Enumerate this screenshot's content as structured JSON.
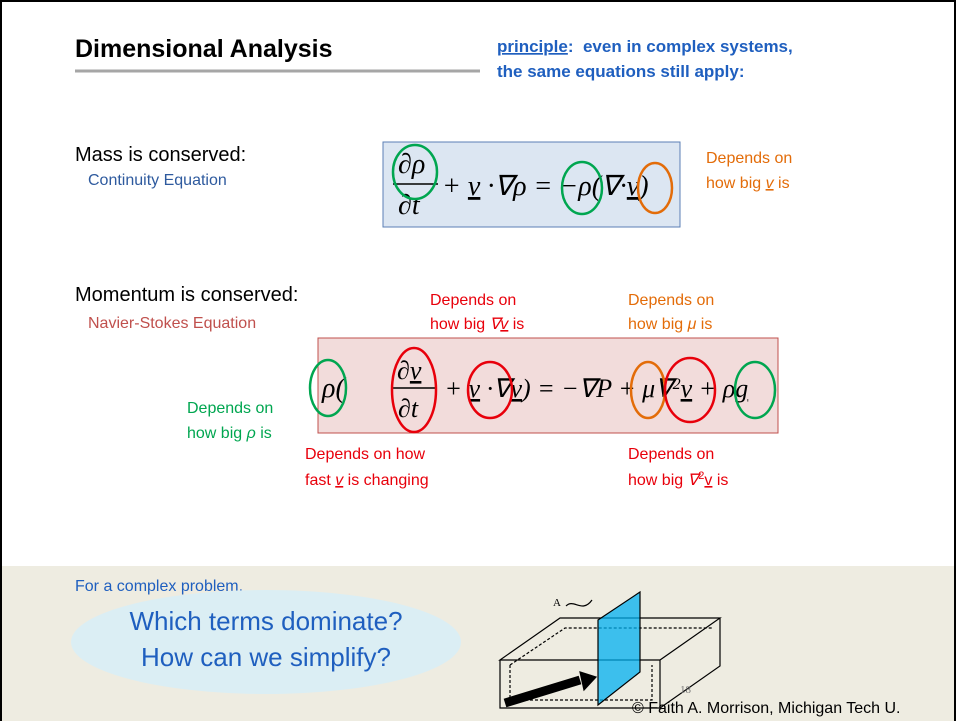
{
  "title": "Dimensional Analysis",
  "principle": {
    "keyword": "principle",
    "line1": ":  even in complex systems,",
    "line2": "the same equations still apply:"
  },
  "mass": {
    "heading": "Mass is conserved:",
    "equation_name": "Continuity Equation",
    "equation": {
      "numerator": "∂ρ",
      "denominator": "∂t",
      "terms": [
        "+ ",
        "v",
        " ·∇ρ = −ρ(∇·",
        "v",
        ")"
      ]
    },
    "note": {
      "line1": "Depends on",
      "line2": [
        "how big ",
        "v",
        " is"
      ]
    }
  },
  "momentum": {
    "heading": "Momentum is conserved:",
    "equation_name": "Navier-Stokes Equation",
    "equation": {
      "lhs_open": "ρ(",
      "numerator": [
        "∂",
        "v"
      ],
      "denominator": "∂t",
      "lhs_rest": [
        " + ",
        "v",
        " ·∇",
        "v",
        ") ",
        "= −∇P + μ∇",
        "2",
        "v",
        " + ρ",
        "g"
      ],
      "rhs": [
        "= −∇P + μ∇",
        "2",
        "v",
        " + ρ",
        "g"
      ]
    },
    "notes": {
      "convection": {
        "line1": "Depends on",
        "line2": [
          "how big ",
          "∇",
          "v",
          " is"
        ]
      },
      "viscosity": {
        "line1": "Depends on",
        "line2": [
          "how big ",
          "μ",
          " is"
        ]
      },
      "density": {
        "line1": "Depends on",
        "line2": [
          "how big ",
          "ρ",
          " is"
        ]
      },
      "time": {
        "line1": "Depends on how",
        "line2": [
          "fast ",
          "v",
          " is changing"
        ]
      },
      "laplacian": {
        "line1": "Depends on",
        "line2": [
          "how big ",
          "∇",
          "2",
          "v",
          " is"
        ]
      }
    }
  },
  "bottom": {
    "prompt": "For a complex problem,",
    "questions": [
      "Which terms dominate?",
      "How can we simplify?"
    ],
    "diagram_label": "A"
  },
  "footer": {
    "slide_number": "18",
    "copyright": "© Faith A. Morrison, Michigan Tech U."
  }
}
